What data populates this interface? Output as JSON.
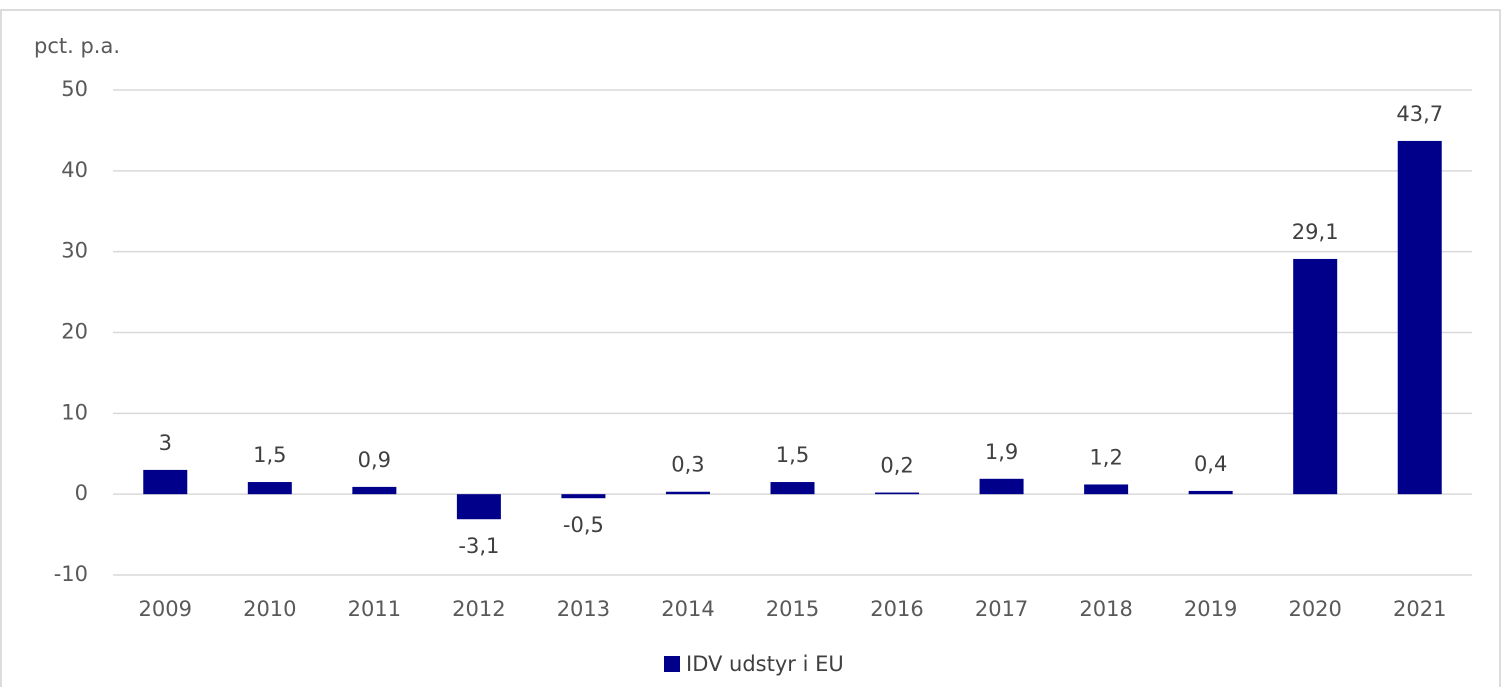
{
  "chart_data": {
    "type": "bar",
    "y_axis_label": "pct. p.a.",
    "categories": [
      "2009",
      "2010",
      "2011",
      "2012",
      "2013",
      "2014",
      "2015",
      "2016",
      "2017",
      "2018",
      "2019",
      "2020",
      "2021"
    ],
    "series": [
      {
        "name": "IDV udstyr i EU",
        "color": "#00008b",
        "values": [
          3,
          1.5,
          0.9,
          -3.1,
          -0.5,
          0.3,
          1.5,
          0.2,
          1.9,
          1.2,
          0.4,
          29.1,
          43.7
        ],
        "value_labels": [
          "3",
          "1,5",
          "0,9",
          "-3,1",
          "-0,5",
          "0,3",
          "1,5",
          "0,2",
          "1,9",
          "1,2",
          "0,4",
          "29,1",
          "43,7"
        ]
      }
    ],
    "ylim": [
      -10,
      50
    ],
    "yticks": [
      -10,
      0,
      10,
      20,
      30,
      40,
      50
    ],
    "grid": true,
    "legend": "bottom"
  }
}
